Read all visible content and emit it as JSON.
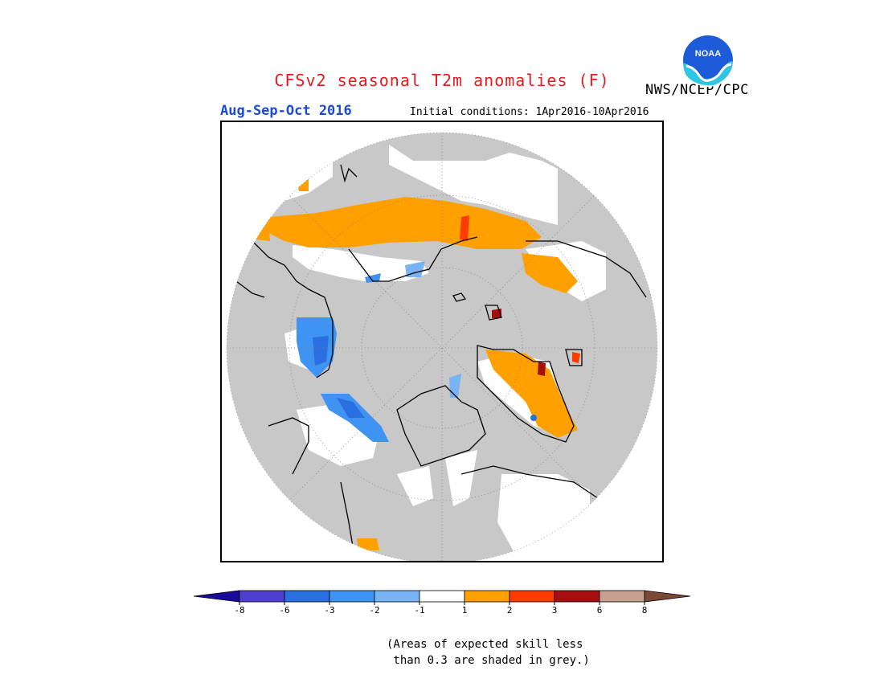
{
  "header": {
    "title": "CFSv2 seasonal T2m anomalies (F)",
    "season": "Aug-Sep-Oct 2016",
    "initial_conditions": "Initial conditions: 1Apr2016-10Apr2016",
    "agency": "NWS/NCEP/CPC",
    "logo_text": "NOAA"
  },
  "colors": {
    "skill_grey": "#c8c8c8",
    "neutral": "#ffffff",
    "coast": "#000000"
  },
  "legend": {
    "bins": [
      {
        "color": "#1a0a9c"
      },
      {
        "color": "#4f3fcf"
      },
      {
        "color": "#2a6fe0"
      },
      {
        "color": "#3f93f2"
      },
      {
        "color": "#78b4f4"
      },
      {
        "color": "#ffffff"
      },
      {
        "color": "#ffa000"
      },
      {
        "color": "#ff3c00"
      },
      {
        "color": "#a50f0f"
      },
      {
        "color": "#c8a090"
      },
      {
        "color": "#7a4a36"
      }
    ],
    "ticks": [
      "-8",
      "-6",
      "-3",
      "-2",
      "-1",
      "1",
      "2",
      "3",
      "6",
      "8"
    ]
  },
  "footnote": {
    "line1": "(Areas of expected skill less",
    "line2": " than 0.3 are shaded in grey.)"
  }
}
